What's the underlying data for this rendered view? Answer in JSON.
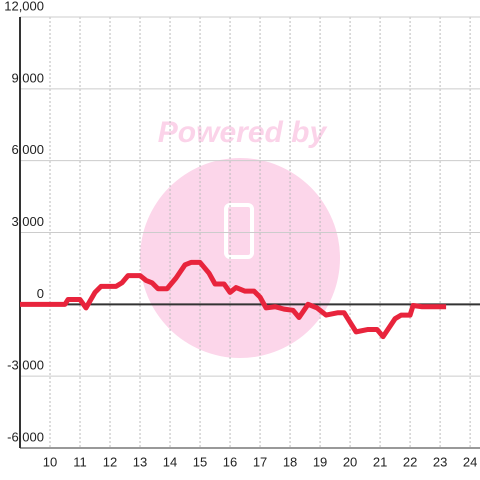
{
  "chart_data": {
    "type": "line",
    "watermark": "Powered by",
    "x": [
      9.0,
      10.5,
      10.6,
      11.0,
      11.2,
      11.5,
      11.7,
      12.2,
      12.4,
      12.6,
      13.0,
      13.2,
      13.4,
      13.6,
      13.9,
      14.2,
      14.5,
      14.7,
      15.0,
      15.3,
      15.5,
      15.8,
      16.0,
      16.2,
      16.5,
      16.8,
      17.0,
      17.2,
      17.5,
      17.8,
      18.1,
      18.3,
      18.6,
      18.9,
      19.2,
      19.6,
      19.8,
      20.2,
      20.6,
      20.9,
      21.1,
      21.5,
      21.7,
      22.0,
      22.1,
      22.4,
      23.2
    ],
    "series": [
      {
        "color": "#e8243c",
        "values": [
          0,
          0,
          200,
          200,
          -150,
          500,
          750,
          750,
          900,
          1200,
          1200,
          1000,
          900,
          650,
          650,
          1100,
          1650,
          1750,
          1750,
          1300,
          850,
          850,
          500,
          700,
          550,
          550,
          300,
          -150,
          -100,
          -200,
          -250,
          -550,
          0,
          -150,
          -450,
          -350,
          -350,
          -1150,
          -1050,
          -1050,
          -1350,
          -600,
          -450,
          -450,
          -50,
          -100,
          -100
        ]
      }
    ],
    "xlim": [
      9,
      24.33
    ],
    "xticks": [
      10,
      11,
      12,
      13,
      14,
      15,
      16,
      17,
      18,
      19,
      20,
      21,
      22,
      23,
      24
    ],
    "ylim": [
      -6000,
      12000
    ],
    "yticks": [
      {
        "value": -6000,
        "label": "-6,000"
      },
      {
        "value": -3000,
        "label": "-3,000"
      },
      0,
      {
        "value": 3000,
        "label": "3,000"
      },
      {
        "value": 6000,
        "label": "6,000"
      },
      {
        "value": 9000,
        "label": "9,000"
      },
      {
        "value": 12000,
        "label": "12,000"
      }
    ],
    "grid": true
  }
}
